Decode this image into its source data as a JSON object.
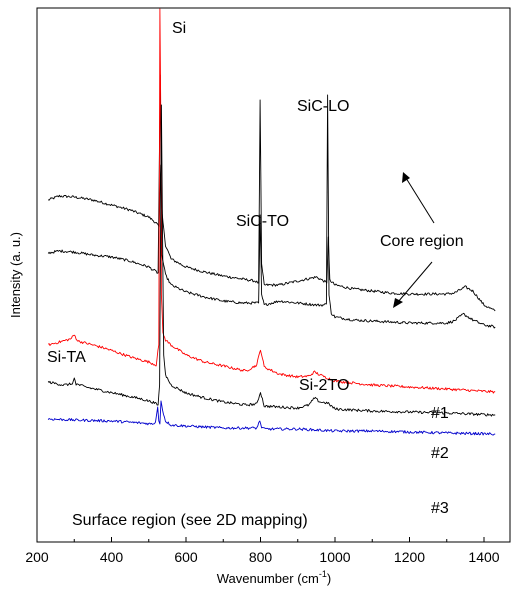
{
  "chart_data": {
    "type": "line",
    "xlabel": "Wavenumber (cm",
    "xlabel_sup": "-1",
    "xlabel_close": ")",
    "ylabel": "Intensity (a. u.)",
    "xlim": [
      200,
      1450
    ],
    "x_ticks": [
      "200",
      "400",
      "600",
      "800",
      "1000",
      "1200",
      "1400"
    ],
    "grid": false,
    "y_tick_labels": false,
    "series": [
      {
        "color": "#000000",
        "points": [
          [
            230,
            125
          ],
          [
            260,
            129
          ],
          [
            300,
            128
          ],
          [
            350,
            125
          ],
          [
            400,
            120
          ],
          [
            450,
            115
          ],
          [
            500,
            108
          ],
          [
            520,
            102
          ],
          [
            528,
            98
          ],
          [
            532,
            160
          ],
          [
            536,
            110
          ],
          [
            545,
            80
          ],
          [
            560,
            66
          ],
          [
            600,
            58
          ],
          [
            650,
            53
          ],
          [
            700,
            49
          ],
          [
            750,
            46
          ],
          [
            785,
            44
          ],
          [
            795,
            42
          ],
          [
            799,
            225
          ],
          [
            803,
            60
          ],
          [
            810,
            40
          ],
          [
            850,
            40
          ],
          [
            900,
            44
          ],
          [
            950,
            48
          ],
          [
            970,
            44
          ],
          [
            978,
            42
          ],
          [
            982,
            88
          ],
          [
            986,
            45
          ],
          [
            1000,
            40
          ],
          [
            1050,
            36
          ],
          [
            1100,
            34
          ],
          [
            1150,
            32
          ],
          [
            1200,
            31
          ],
          [
            1250,
            31
          ],
          [
            1300,
            31
          ],
          [
            1320,
            32
          ],
          [
            1350,
            38
          ],
          [
            1370,
            34
          ],
          [
            1400,
            20
          ],
          [
            1430,
            14
          ]
        ]
      },
      {
        "color": "#000000",
        "points": [
          [
            230,
            72
          ],
          [
            260,
            74
          ],
          [
            300,
            73
          ],
          [
            350,
            70
          ],
          [
            400,
            68
          ],
          [
            450,
            64
          ],
          [
            500,
            58
          ],
          [
            525,
            52
          ],
          [
            531,
            250
          ],
          [
            535,
            70
          ],
          [
            545,
            50
          ],
          [
            560,
            40
          ],
          [
            600,
            33
          ],
          [
            650,
            28
          ],
          [
            700,
            24
          ],
          [
            750,
            22
          ],
          [
            785,
            22
          ],
          [
            795,
            22
          ],
          [
            799,
            110
          ],
          [
            803,
            30
          ],
          [
            810,
            20
          ],
          [
            850,
            24
          ],
          [
            900,
            22
          ],
          [
            950,
            20
          ],
          [
            970,
            20
          ],
          [
            977,
            21
          ],
          [
            980,
            230
          ],
          [
            984,
            30
          ],
          [
            990,
            12
          ],
          [
            1000,
            8
          ],
          [
            1050,
            5
          ],
          [
            1100,
            4
          ],
          [
            1150,
            3
          ],
          [
            1200,
            2
          ],
          [
            1250,
            2
          ],
          [
            1300,
            2
          ],
          [
            1320,
            4
          ],
          [
            1345,
            11
          ],
          [
            1370,
            5
          ],
          [
            1400,
            0
          ],
          [
            1430,
            -2
          ]
        ]
      },
      {
        "color": "#ff0000",
        "points": [
          [
            230,
            -20
          ],
          [
            260,
            -17
          ],
          [
            290,
            -14
          ],
          [
            300,
            -10
          ],
          [
            310,
            -16
          ],
          [
            340,
            -19
          ],
          [
            380,
            -23
          ],
          [
            420,
            -28
          ],
          [
            460,
            -33
          ],
          [
            500,
            -37
          ],
          [
            520,
            -40
          ],
          [
            527,
            -20
          ],
          [
            530,
            410
          ],
          [
            534,
            30
          ],
          [
            538,
            -8
          ],
          [
            545,
            -15
          ],
          [
            560,
            -20
          ],
          [
            600,
            -30
          ],
          [
            650,
            -37
          ],
          [
            700,
            -41
          ],
          [
            760,
            -46
          ],
          [
            790,
            -40
          ],
          [
            800,
            -24
          ],
          [
            810,
            -42
          ],
          [
            850,
            -49
          ],
          [
            900,
            -52
          ],
          [
            930,
            -51
          ],
          [
            945,
            -47
          ],
          [
            960,
            -50
          ],
          [
            1000,
            -56
          ],
          [
            1100,
            -60
          ],
          [
            1200,
            -62
          ],
          [
            1300,
            -64
          ],
          [
            1430,
            -67
          ]
        ]
      },
      {
        "color": "#000000",
        "points": [
          [
            230,
            -57
          ],
          [
            270,
            -60
          ],
          [
            295,
            -59
          ],
          [
            300,
            -53
          ],
          [
            305,
            -59
          ],
          [
            330,
            -62
          ],
          [
            380,
            -66
          ],
          [
            430,
            -70
          ],
          [
            480,
            -74
          ],
          [
            510,
            -77
          ],
          [
            525,
            -80
          ],
          [
            529,
            -60
          ],
          [
            534,
            220
          ],
          [
            540,
            -30
          ],
          [
            545,
            -50
          ],
          [
            560,
            -60
          ],
          [
            600,
            -68
          ],
          [
            650,
            -73
          ],
          [
            700,
            -77
          ],
          [
            760,
            -80
          ],
          [
            790,
            -79
          ],
          [
            800,
            -67
          ],
          [
            810,
            -81
          ],
          [
            850,
            -82
          ],
          [
            900,
            -83
          ],
          [
            930,
            -80
          ],
          [
            945,
            -73
          ],
          [
            960,
            -77
          ],
          [
            980,
            -78
          ],
          [
            1000,
            -84
          ],
          [
            1100,
            -86
          ],
          [
            1200,
            -87
          ],
          [
            1300,
            -88
          ],
          [
            1430,
            -90
          ]
        ]
      },
      {
        "color": "#0000cc",
        "points": [
          [
            230,
            -94
          ],
          [
            300,
            -95
          ],
          [
            400,
            -96
          ],
          [
            480,
            -98
          ],
          [
            510,
            -99
          ],
          [
            518,
            -97
          ],
          [
            524,
            -82
          ],
          [
            527,
            -96
          ],
          [
            530,
            -99
          ],
          [
            533,
            -76
          ],
          [
            537,
            -85
          ],
          [
            545,
            -96
          ],
          [
            560,
            -100
          ],
          [
            600,
            -101
          ],
          [
            700,
            -103
          ],
          [
            790,
            -103
          ],
          [
            798,
            -96
          ],
          [
            803,
            -102
          ],
          [
            810,
            -104
          ],
          [
            900,
            -104
          ],
          [
            1000,
            -106
          ],
          [
            1100,
            -106
          ],
          [
            1200,
            -107
          ],
          [
            1300,
            -108
          ],
          [
            1430,
            -109
          ]
        ]
      }
    ],
    "annotations": {
      "si": "Si",
      "sic_lo": "SiC-LO",
      "sic_to": "SiC-TO",
      "core_region": "Core region",
      "si_ta": "Si-TA",
      "si_2to": "Si-2TO",
      "label_1": "#1",
      "label_2": "#2",
      "label_3": "#3",
      "surface_region": "Surface region (see 2D mapping)"
    }
  }
}
